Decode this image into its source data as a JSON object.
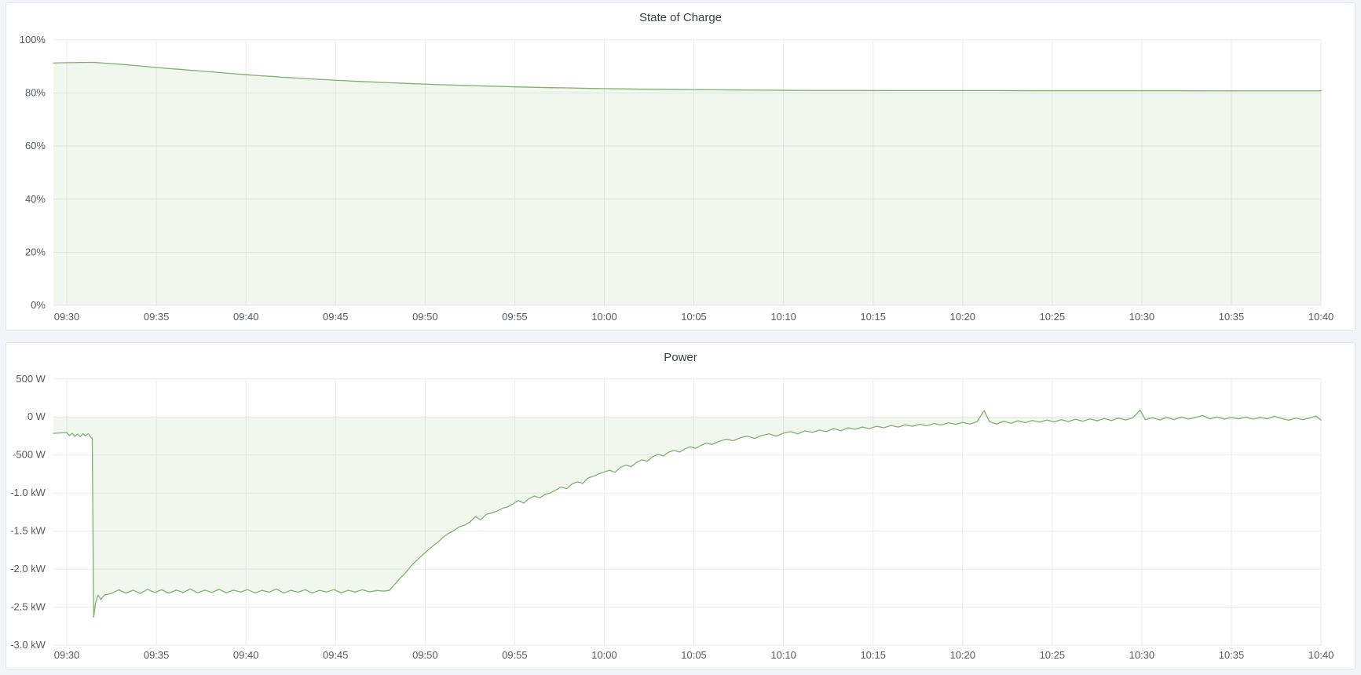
{
  "colors": {
    "line": "#7eb26d",
    "fill": "rgba(126,178,109,0.11)",
    "grid": "#ebebed",
    "tick_text": "#565a63",
    "title_text": "#3c4048",
    "panel_bg": "#ffffff",
    "page_bg": "#f3f4f8"
  },
  "chart_data": [
    {
      "type": "area",
      "title": "State of Charge",
      "legend_position": "none",
      "grid": true,
      "xlim_minutes": [
        -0.75,
        70
      ],
      "ylim": [
        0,
        100
      ],
      "baseline": 0,
      "x_tick_minutes": [
        0,
        5,
        10,
        15,
        20,
        25,
        30,
        35,
        40,
        45,
        50,
        55,
        60,
        65,
        70
      ],
      "x_tick_labels": [
        "09:30",
        "09:35",
        "09:40",
        "09:45",
        "09:50",
        "09:55",
        "10:00",
        "10:05",
        "10:10",
        "10:15",
        "10:20",
        "10:25",
        "10:30",
        "10:35",
        "10:40"
      ],
      "y_tick_values": [
        0,
        20,
        40,
        60,
        80,
        100
      ],
      "y_tick_labels": [
        "0%",
        "20%",
        "40%",
        "60%",
        "80%",
        "100%"
      ],
      "series_name": "State of Charge (%)",
      "points": [
        [
          -0.75,
          91.3
        ],
        [
          0,
          91.4
        ],
        [
          0.5,
          91.45
        ],
        [
          1,
          91.5
        ],
        [
          1.5,
          91.5
        ],
        [
          2,
          91.3
        ],
        [
          2.5,
          91.05
        ],
        [
          3,
          90.8
        ],
        [
          3.5,
          90.5
        ],
        [
          4,
          90.2
        ],
        [
          4.5,
          89.9
        ],
        [
          5,
          89.6
        ],
        [
          5.5,
          89.3
        ],
        [
          6,
          89.05
        ],
        [
          6.5,
          88.8
        ],
        [
          7,
          88.5
        ],
        [
          7.5,
          88.25
        ],
        [
          8,
          88.0
        ],
        [
          8.5,
          87.7
        ],
        [
          9,
          87.4
        ],
        [
          9.5,
          87.15
        ],
        [
          10,
          86.9
        ],
        [
          10.5,
          86.65
        ],
        [
          11,
          86.4
        ],
        [
          11.5,
          86.2
        ],
        [
          12,
          85.95
        ],
        [
          12.5,
          85.75
        ],
        [
          13,
          85.55
        ],
        [
          13.5,
          85.35
        ],
        [
          14,
          85.15
        ],
        [
          14.5,
          85.0
        ],
        [
          15,
          84.8
        ],
        [
          15.5,
          84.65
        ],
        [
          16,
          84.45
        ],
        [
          16.5,
          84.3
        ],
        [
          17,
          84.15
        ],
        [
          17.5,
          84.0
        ],
        [
          18,
          83.85
        ],
        [
          18.5,
          83.7
        ],
        [
          19,
          83.6
        ],
        [
          19.5,
          83.45
        ],
        [
          20,
          83.35
        ],
        [
          20.5,
          83.2
        ],
        [
          21,
          83.1
        ],
        [
          21.5,
          83.0
        ],
        [
          22,
          82.9
        ],
        [
          22.5,
          82.8
        ],
        [
          23,
          82.7
        ],
        [
          23.5,
          82.6
        ],
        [
          24,
          82.5
        ],
        [
          24.5,
          82.4
        ],
        [
          25,
          82.3
        ],
        [
          26,
          82.15
        ],
        [
          27,
          82.0
        ],
        [
          28,
          81.9
        ],
        [
          29,
          81.75
        ],
        [
          30,
          81.65
        ],
        [
          31,
          81.55
        ],
        [
          32,
          81.45
        ],
        [
          33,
          81.4
        ],
        [
          34,
          81.3
        ],
        [
          35,
          81.25
        ],
        [
          36,
          81.2
        ],
        [
          37,
          81.15
        ],
        [
          38,
          81.1
        ],
        [
          39,
          81.05
        ],
        [
          40,
          81.0
        ],
        [
          42,
          80.95
        ],
        [
          44,
          80.95
        ],
        [
          46,
          80.9
        ],
        [
          48,
          80.9
        ],
        [
          50,
          80.9
        ],
        [
          52,
          80.9
        ],
        [
          54,
          80.85
        ],
        [
          56,
          80.85
        ],
        [
          58,
          80.85
        ],
        [
          60,
          80.85
        ],
        [
          62,
          80.85
        ],
        [
          64,
          80.8
        ],
        [
          66,
          80.8
        ],
        [
          68,
          80.8
        ],
        [
          70,
          80.8
        ]
      ]
    },
    {
      "type": "area",
      "title": "Power",
      "legend_position": "none",
      "grid": true,
      "xlim_minutes": [
        -0.75,
        70
      ],
      "ylim": [
        -3000,
        500
      ],
      "baseline": 0,
      "x_tick_minutes": [
        0,
        5,
        10,
        15,
        20,
        25,
        30,
        35,
        40,
        45,
        50,
        55,
        60,
        65,
        70
      ],
      "x_tick_labels": [
        "09:30",
        "09:35",
        "09:40",
        "09:45",
        "09:50",
        "09:55",
        "10:00",
        "10:05",
        "10:10",
        "10:15",
        "10:20",
        "10:25",
        "10:30",
        "10:35",
        "10:40"
      ],
      "y_tick_values": [
        500,
        0,
        -500,
        -1000,
        -1500,
        -2000,
        -2500,
        -3000
      ],
      "y_tick_labels": [
        "500 W",
        "0 W",
        "-500 W",
        "-1.0 kW",
        "-1.5 kW",
        "-2.0 kW",
        "-2.5 kW",
        "-3.0 kW"
      ],
      "series_name": "Power (W)",
      "points": [
        [
          -0.75,
          -215
        ],
        [
          0,
          -205
        ],
        [
          0.15,
          -245
        ],
        [
          0.3,
          -215
        ],
        [
          0.45,
          -255
        ],
        [
          0.6,
          -225
        ],
        [
          0.75,
          -260
        ],
        [
          0.9,
          -220
        ],
        [
          1.05,
          -248
        ],
        [
          1.2,
          -218
        ],
        [
          1.35,
          -272
        ],
        [
          1.42,
          -280
        ],
        [
          1.5,
          -2630
        ],
        [
          1.6,
          -2450
        ],
        [
          1.75,
          -2340
        ],
        [
          1.9,
          -2400
        ],
        [
          2.1,
          -2340
        ],
        [
          2.5,
          -2320
        ],
        [
          2.9,
          -2270
        ],
        [
          3.3,
          -2315
        ],
        [
          3.7,
          -2275
        ],
        [
          4.1,
          -2320
        ],
        [
          4.5,
          -2265
        ],
        [
          4.9,
          -2305
        ],
        [
          5.3,
          -2270
        ],
        [
          5.7,
          -2315
        ],
        [
          6.1,
          -2275
        ],
        [
          6.5,
          -2305
        ],
        [
          6.9,
          -2260
        ],
        [
          7.3,
          -2310
        ],
        [
          7.7,
          -2275
        ],
        [
          8.1,
          -2305
        ],
        [
          8.5,
          -2265
        ],
        [
          8.9,
          -2310
        ],
        [
          9.3,
          -2275
        ],
        [
          9.7,
          -2300
        ],
        [
          10.1,
          -2268
        ],
        [
          10.5,
          -2312
        ],
        [
          10.9,
          -2278
        ],
        [
          11.3,
          -2302
        ],
        [
          11.7,
          -2262
        ],
        [
          12.1,
          -2312
        ],
        [
          12.5,
          -2278
        ],
        [
          12.9,
          -2302
        ],
        [
          13.3,
          -2270
        ],
        [
          13.7,
          -2312
        ],
        [
          14.1,
          -2278
        ],
        [
          14.5,
          -2300
        ],
        [
          14.9,
          -2268
        ],
        [
          15.3,
          -2310
        ],
        [
          15.7,
          -2278
        ],
        [
          16.1,
          -2300
        ],
        [
          16.5,
          -2270
        ],
        [
          16.9,
          -2298
        ],
        [
          17.3,
          -2280
        ],
        [
          17.7,
          -2288
        ],
        [
          18.0,
          -2278
        ],
        [
          18.3,
          -2200
        ],
        [
          18.6,
          -2120
        ],
        [
          18.9,
          -2048
        ],
        [
          19.2,
          -1962
        ],
        [
          19.5,
          -1890
        ],
        [
          19.8,
          -1825
        ],
        [
          20.1,
          -1762
        ],
        [
          20.4,
          -1700
        ],
        [
          20.7,
          -1648
        ],
        [
          21.0,
          -1582
        ],
        [
          21.3,
          -1530
        ],
        [
          21.6,
          -1492
        ],
        [
          21.9,
          -1445
        ],
        [
          22.2,
          -1422
        ],
        [
          22.5,
          -1378
        ],
        [
          22.8,
          -1310
        ],
        [
          23.1,
          -1352
        ],
        [
          23.4,
          -1282
        ],
        [
          23.7,
          -1262
        ],
        [
          24.0,
          -1238
        ],
        [
          24.3,
          -1202
        ],
        [
          24.6,
          -1182
        ],
        [
          24.9,
          -1142
        ],
        [
          25.2,
          -1098
        ],
        [
          25.5,
          -1132
        ],
        [
          25.8,
          -1072
        ],
        [
          26.1,
          -1040
        ],
        [
          26.4,
          -1062
        ],
        [
          26.7,
          -1018
        ],
        [
          27.0,
          -998
        ],
        [
          27.3,
          -958
        ],
        [
          27.6,
          -922
        ],
        [
          27.9,
          -942
        ],
        [
          28.2,
          -880
        ],
        [
          28.5,
          -852
        ],
        [
          28.8,
          -872
        ],
        [
          29.1,
          -800
        ],
        [
          29.4,
          -778
        ],
        [
          29.7,
          -748
        ],
        [
          30.0,
          -722
        ],
        [
          30.3,
          -700
        ],
        [
          30.6,
          -728
        ],
        [
          30.9,
          -662
        ],
        [
          31.2,
          -632
        ],
        [
          31.5,
          -652
        ],
        [
          31.8,
          -598
        ],
        [
          32.1,
          -562
        ],
        [
          32.4,
          -582
        ],
        [
          32.7,
          -522
        ],
        [
          33.0,
          -492
        ],
        [
          33.3,
          -512
        ],
        [
          33.6,
          -462
        ],
        [
          33.9,
          -440
        ],
        [
          34.2,
          -462
        ],
        [
          34.5,
          -420
        ],
        [
          34.8,
          -392
        ],
        [
          35.1,
          -412
        ],
        [
          35.4,
          -372
        ],
        [
          35.7,
          -342
        ],
        [
          36.0,
          -362
        ],
        [
          36.4,
          -322
        ],
        [
          36.8,
          -292
        ],
        [
          37.2,
          -312
        ],
        [
          37.6,
          -272
        ],
        [
          38.0,
          -252
        ],
        [
          38.4,
          -282
        ],
        [
          38.8,
          -242
        ],
        [
          39.2,
          -222
        ],
        [
          39.6,
          -252
        ],
        [
          40.0,
          -212
        ],
        [
          40.4,
          -192
        ],
        [
          40.8,
          -222
        ],
        [
          41.2,
          -182
        ],
        [
          41.6,
          -202
        ],
        [
          42.0,
          -172
        ],
        [
          42.4,
          -192
        ],
        [
          42.8,
          -152
        ],
        [
          43.2,
          -182
        ],
        [
          43.6,
          -142
        ],
        [
          44.0,
          -162
        ],
        [
          44.4,
          -132
        ],
        [
          44.8,
          -152
        ],
        [
          45.2,
          -122
        ],
        [
          45.6,
          -142
        ],
        [
          46.0,
          -112
        ],
        [
          46.4,
          -132
        ],
        [
          46.8,
          -102
        ],
        [
          47.2,
          -122
        ],
        [
          47.6,
          -96
        ],
        [
          48.0,
          -116
        ],
        [
          48.4,
          -86
        ],
        [
          48.8,
          -106
        ],
        [
          49.2,
          -76
        ],
        [
          49.6,
          -96
        ],
        [
          50.0,
          -72
        ],
        [
          50.4,
          -92
        ],
        [
          50.8,
          -62
        ],
        [
          51.2,
          85
        ],
        [
          51.5,
          -62
        ],
        [
          51.9,
          -92
        ],
        [
          52.3,
          -56
        ],
        [
          52.7,
          -82
        ],
        [
          53.1,
          -50
        ],
        [
          53.5,
          -76
        ],
        [
          53.9,
          -46
        ],
        [
          54.3,
          -70
        ],
        [
          54.7,
          -40
        ],
        [
          55.1,
          -66
        ],
        [
          55.5,
          -36
        ],
        [
          55.9,
          -60
        ],
        [
          56.3,
          -30
        ],
        [
          56.7,
          -56
        ],
        [
          57.1,
          -26
        ],
        [
          57.5,
          -50
        ],
        [
          57.9,
          -20
        ],
        [
          58.3,
          -46
        ],
        [
          58.7,
          -16
        ],
        [
          59.1,
          -40
        ],
        [
          59.5,
          -12
        ],
        [
          59.9,
          90
        ],
        [
          60.2,
          -36
        ],
        [
          60.6,
          -10
        ],
        [
          61.0,
          -40
        ],
        [
          61.4,
          -6
        ],
        [
          61.8,
          -36
        ],
        [
          62.2,
          0
        ],
        [
          62.6,
          -30
        ],
        [
          63.0,
          -6
        ],
        [
          63.4,
          20
        ],
        [
          63.8,
          -26
        ],
        [
          64.2,
          0
        ],
        [
          64.6,
          -30
        ],
        [
          65.0,
          -6
        ],
        [
          65.4,
          -26
        ],
        [
          65.8,
          0
        ],
        [
          66.2,
          -30
        ],
        [
          66.6,
          -6
        ],
        [
          67.0,
          -26
        ],
        [
          67.4,
          10
        ],
        [
          67.8,
          -20
        ],
        [
          68.2,
          -42
        ],
        [
          68.6,
          -16
        ],
        [
          69.0,
          -36
        ],
        [
          69.4,
          -12
        ],
        [
          69.7,
          14
        ],
        [
          70.0,
          -40
        ]
      ]
    }
  ]
}
